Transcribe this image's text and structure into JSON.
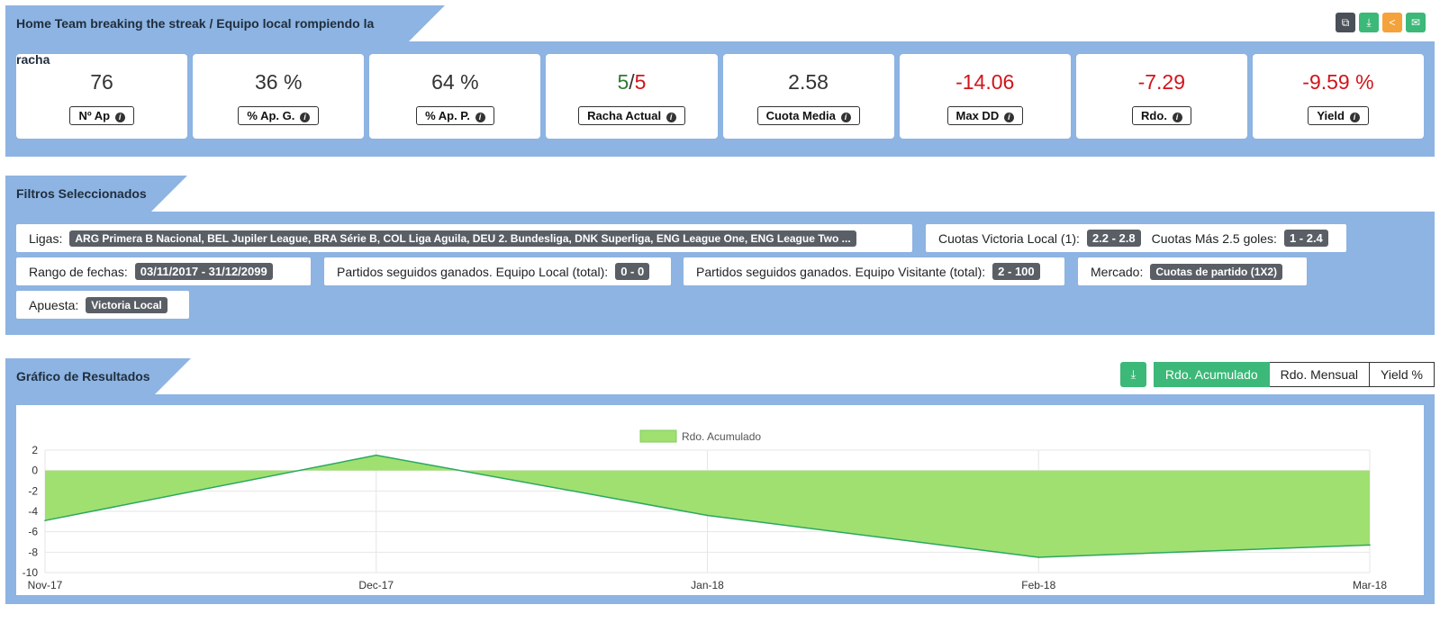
{
  "stats_section": {
    "title": "Home Team breaking the streak / Equipo local rompiendo la racha",
    "icons": [
      "copy-icon",
      "download-icon",
      "share-icon",
      "email-icon"
    ],
    "cards": [
      {
        "value": "76",
        "label": "Nº Ap"
      },
      {
        "value": "36 %",
        "label": "% Ap. G."
      },
      {
        "value": "64 %",
        "label": "% Ap. P."
      },
      {
        "value_a": "5",
        "sep": "/",
        "value_b": "5",
        "label": "Racha Actual"
      },
      {
        "value": "2.58",
        "label": "Cuota Media"
      },
      {
        "value": "-14.06",
        "label": "Max DD"
      },
      {
        "value": "-7.29",
        "label": "Rdo."
      },
      {
        "value": "-9.59 %",
        "label": "Yield"
      }
    ]
  },
  "filters_section": {
    "title": "Filtros Seleccionados",
    "ligas_label": "Ligas:",
    "ligas_value": "ARG Primera B Nacional, BEL Jupiler League, BRA Série B, COL Liga Aguila, DEU 2. Bundesliga, DNK Superliga, ENG League One, ENG League Two ...",
    "cuotas_local_label": "Cuotas Victoria Local (1):",
    "cuotas_local_value": "2.2 - 2.8",
    "cuotas_goles_label": "Cuotas Más 2.5 goles:",
    "cuotas_goles_value": "1 - 2.4",
    "rango_label": "Rango de fechas:",
    "rango_value": "03/11/2017 - 31/12/2099",
    "local_label": "Partidos seguidos ganados. Equipo Local (total):",
    "local_value": "0 - 0",
    "visit_label": "Partidos seguidos ganados. Equipo Visitante (total):",
    "visit_value": "2 - 100",
    "mercado_label": "Mercado:",
    "mercado_value": "Cuotas de partido (1X2)",
    "apuesta_label": "Apuesta:",
    "apuesta_value": "Victoria Local"
  },
  "chart_section": {
    "title": "Gráfico de Resultados",
    "buttons": [
      "Rdo. Acumulado",
      "Rdo. Mensual",
      "Yield %"
    ],
    "active_button": "Rdo. Acumulado"
  },
  "colors": {
    "header_bg": "#8db4e2",
    "green": "#3cb878",
    "fill": "#a0e070",
    "line": "#2aa860",
    "negative": "#d0151c"
  },
  "chart_data": {
    "type": "area",
    "legend": "Rdo. Acumulado",
    "legend_position": "top-center",
    "x": [
      "Nov-17",
      "Dec-17",
      "Jan-18",
      "Feb-18",
      "Mar-18"
    ],
    "series": [
      {
        "name": "Rdo. Acumulado",
        "values": [
          -4.9,
          1.5,
          -4.4,
          -8.5,
          -7.3
        ]
      }
    ],
    "yticks": [
      2,
      0,
      -2,
      -4,
      -6,
      -8,
      -10
    ],
    "ylim": [
      -10,
      2
    ],
    "grid": true
  }
}
